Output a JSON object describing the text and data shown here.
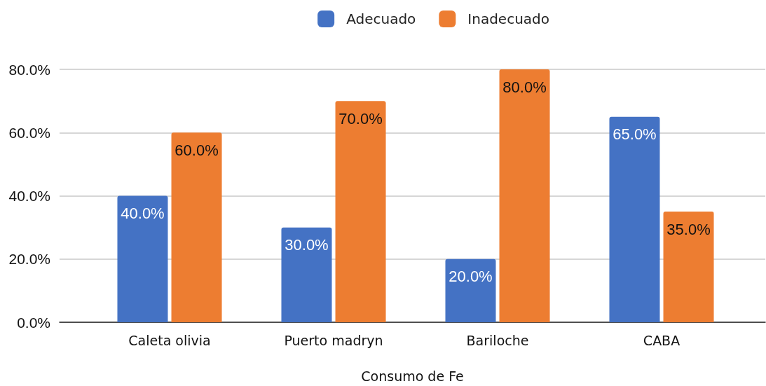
{
  "chart_data": {
    "type": "bar",
    "xlabel": "Consumo de Fe",
    "categories": [
      "Caleta olivia",
      "Puerto madryn",
      "Bariloche",
      "CABA"
    ],
    "series": [
      {
        "name": "Adecuado",
        "color": "#4472c4",
        "values": [
          40,
          30,
          20,
          65
        ],
        "value_labels": [
          "40.0%",
          "30.0%",
          "20.0%",
          "65.0%"
        ]
      },
      {
        "name": "Inadecuado",
        "color": "#ed7d31",
        "values": [
          60,
          70,
          80,
          35
        ],
        "value_labels": [
          "60.0%",
          "70.0%",
          "80.0%",
          "35.0%"
        ]
      }
    ],
    "ylim": [
      0,
      80
    ],
    "yticks": [
      {
        "value": 0,
        "label": "0.0%"
      },
      {
        "value": 20,
        "label": "20.0%"
      },
      {
        "value": 40,
        "label": "40.0%"
      },
      {
        "value": 60,
        "label": "60.0%"
      },
      {
        "value": 80,
        "label": "80.0%"
      }
    ],
    "grid": "y",
    "legend": "top"
  }
}
